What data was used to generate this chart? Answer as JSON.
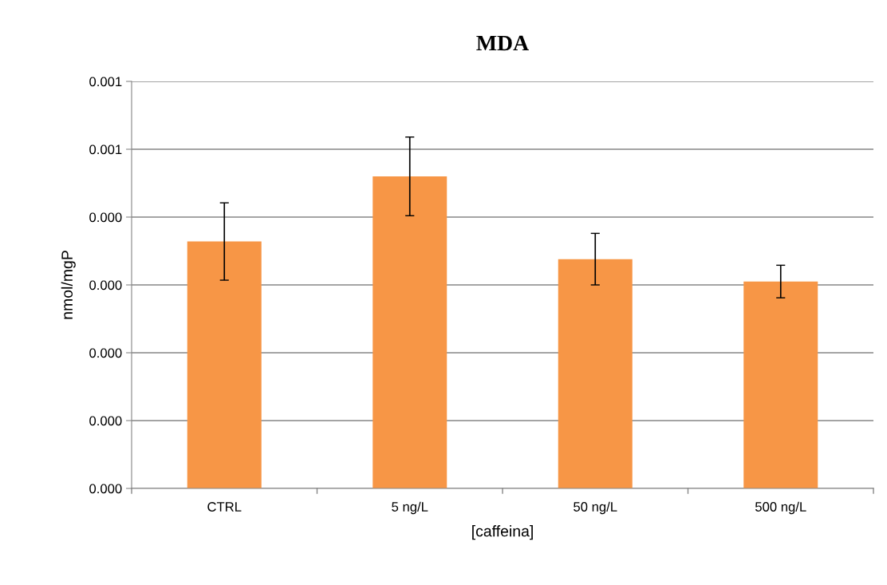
{
  "chart_data": {
    "type": "bar",
    "title": "MDA",
    "xlabel": "[caffeina]",
    "ylabel": "nmol/mgP",
    "categories": [
      "CTRL",
      "5 ng/L",
      "50 ng/L",
      "500 ng/L"
    ],
    "values": [
      0.000364,
      0.00046,
      0.000338,
      0.000305
    ],
    "errors": [
      5.7e-05,
      5.8e-05,
      3.8e-05,
      2.4e-05
    ],
    "color": "#f79646",
    "ylim": [
      0,
      0.0006
    ],
    "yticks": [
      {
        "value": 0,
        "label": "0.000"
      },
      {
        "value": 0.0001,
        "label": "0.000"
      },
      {
        "value": 0.0002,
        "label": "0.000"
      },
      {
        "value": 0.0003,
        "label": "0.000"
      },
      {
        "value": 0.0004,
        "label": "0.000"
      },
      {
        "value": 0.0005,
        "label": "0.001"
      },
      {
        "value": 0.0006,
        "label": "0.001"
      }
    ],
    "grid": "y",
    "legend": false
  }
}
